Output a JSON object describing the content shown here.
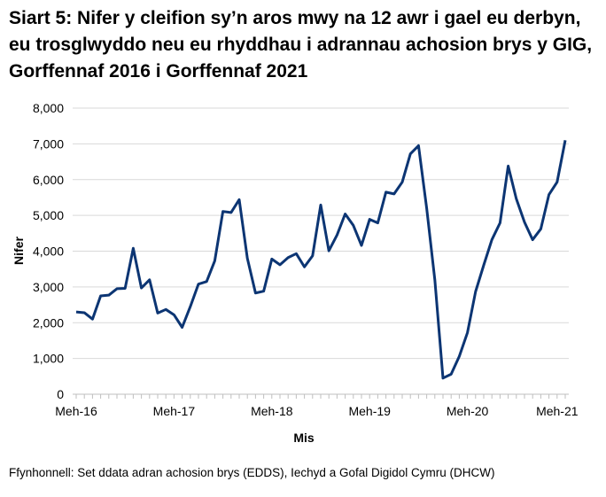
{
  "chart_data": {
    "type": "line",
    "title": "Siart 5: Nifer y cleifion sy’n aros mwy na 12 awr i gael eu derbyn, eu trosglwyddo neu eu rhyddhau i adrannau achosion brys y GIG, Gorffennaf 2016 i Gorffennaf 2021",
    "xlabel": "Mis",
    "ylabel": "Nifer",
    "ylim": [
      0,
      8000
    ],
    "yticks": [
      "0",
      "1,000",
      "2,000",
      "3,000",
      "4,000",
      "5,000",
      "6,000",
      "7,000",
      "8,000"
    ],
    "xticks": [
      {
        "label": "Meh-16",
        "index": 0
      },
      {
        "label": "Meh-17",
        "index": 12
      },
      {
        "label": "Meh-18",
        "index": 24
      },
      {
        "label": "Meh-19",
        "index": 36
      },
      {
        "label": "Meh-20",
        "index": 48
      },
      {
        "label": "Meh-21",
        "index": 59
      }
    ],
    "grid": true,
    "color": "#0c3573",
    "values": [
      2300,
      2280,
      2100,
      2750,
      2770,
      2950,
      2960,
      4080,
      2970,
      3200,
      2270,
      2370,
      2220,
      1870,
      2450,
      3080,
      3150,
      3730,
      5110,
      5080,
      5440,
      3800,
      2830,
      2880,
      3780,
      3620,
      3820,
      3930,
      3560,
      3870,
      5290,
      4010,
      4450,
      5040,
      4720,
      4160,
      4890,
      4790,
      5650,
      5600,
      5930,
      6720,
      6950,
      5200,
      3200,
      450,
      560,
      1060,
      1720,
      2870,
      3610,
      4320,
      4790,
      6380,
      5460,
      4810,
      4320,
      4620,
      5580,
      5930,
      7100
    ]
  },
  "source": "Ffynhonnell: Set ddata adran achosion brys (EDDS), Iechyd a Gofal Digidol Cymru (DHCW)"
}
